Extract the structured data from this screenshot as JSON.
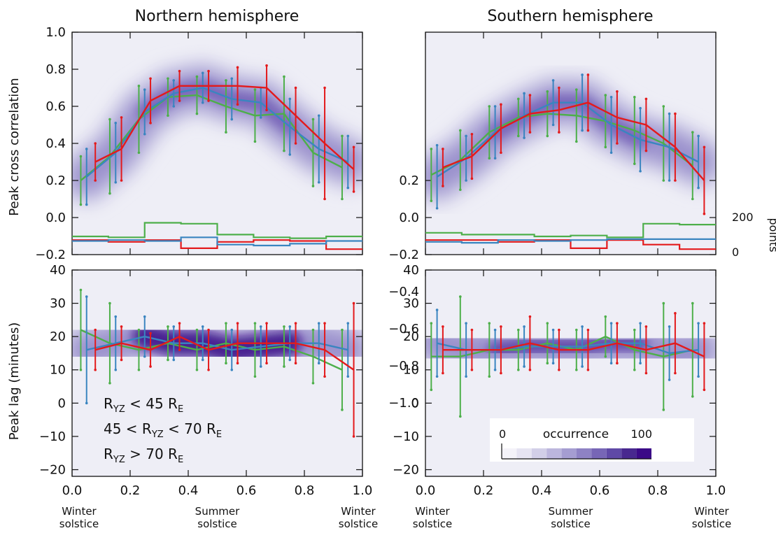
{
  "figure": {
    "panel_titles": [
      "Northern hemisphere",
      "Southern hemisphere"
    ],
    "ylabel_top": "Peak cross correlation",
    "ylabel_bottom": "Peak lag (minutes)",
    "right_axis_label": "points",
    "right_axis_ticks": [
      "200",
      "0"
    ],
    "season_labels": [
      {
        "x": 0.0,
        "line1": "Winter",
        "line2": "solstice"
      },
      {
        "x": 0.5,
        "line1": "Summer",
        "line2": "solstice"
      },
      {
        "x": 1.0,
        "line1": "Winter",
        "line2": "solstice"
      }
    ],
    "legend": [
      {
        "pre": "R",
        "sub": "YZ",
        "post": " < 45 R",
        "sub2": "E",
        "color": "#e31a1c",
        "lead": ""
      },
      {
        "pre": "R",
        "sub": "YZ",
        "post": " < 70 R",
        "sub2": "E",
        "color": "#3a85c0",
        "lead": "45 < "
      },
      {
        "pre": "R",
        "sub": "YZ",
        "post": " > 70 R",
        "sub2": "E",
        "color": "#4daf4a",
        "lead": ""
      }
    ],
    "colorbar": {
      "min_label": "0",
      "max_label": "100",
      "title": "occurrence"
    },
    "colors": {
      "red": "#e31a1c",
      "blue": "#3a85c0",
      "green": "#4daf4a",
      "contour_dark": "#3b0a87",
      "contour_light": "#eeeef6"
    }
  },
  "chart_data": [
    {
      "panel": "north-correlation",
      "type": "line",
      "title": "Northern hemisphere",
      "ylabel": "Peak cross correlation",
      "xlim": [
        0,
        1
      ],
      "ylim": [
        -0.2,
        1.0
      ],
      "xticks": [
        "0.0",
        "0.2",
        "0.4",
        "0.6",
        "0.8",
        "1.0"
      ],
      "yticks": [
        "1.0",
        "0.8",
        "0.6",
        "0.4",
        "0.2",
        "0.0",
        "-0.2"
      ],
      "series": [
        {
          "color": "red",
          "x": [
            0.08,
            0.17,
            0.27,
            0.37,
            0.47,
            0.57,
            0.67,
            0.77,
            0.87,
            0.97
          ],
          "y": [
            0.3,
            0.37,
            0.63,
            0.71,
            0.71,
            0.71,
            0.7,
            0.55,
            0.4,
            0.26
          ],
          "err": [
            0.1,
            0.17,
            0.12,
            0.08,
            0.08,
            0.1,
            0.12,
            0.15,
            0.3,
            0.12
          ]
        },
        {
          "color": "blue",
          "x": [
            0.05,
            0.15,
            0.25,
            0.35,
            0.45,
            0.55,
            0.65,
            0.75,
            0.85,
            0.95
          ],
          "y": [
            0.22,
            0.35,
            0.57,
            0.67,
            0.7,
            0.64,
            0.62,
            0.49,
            0.37,
            0.3
          ],
          "err": [
            0.15,
            0.16,
            0.12,
            0.07,
            0.08,
            0.11,
            0.08,
            0.15,
            0.18,
            0.14
          ]
        },
        {
          "color": "green",
          "x": [
            0.03,
            0.13,
            0.23,
            0.33,
            0.43,
            0.53,
            0.63,
            0.73,
            0.83,
            0.93
          ],
          "y": [
            0.2,
            0.33,
            0.53,
            0.65,
            0.66,
            0.6,
            0.55,
            0.56,
            0.35,
            0.27
          ],
          "err": [
            0.13,
            0.2,
            0.18,
            0.1,
            0.1,
            0.14,
            0.14,
            0.2,
            0.18,
            0.17
          ]
        }
      ],
      "histogram": {
        "bin_edges": [
          0.0,
          0.125,
          0.25,
          0.375,
          0.5,
          0.625,
          0.75,
          0.875,
          1.0
        ],
        "series": [
          {
            "color": "red",
            "counts": [
              80,
              70,
              80,
              35,
              70,
              80,
              75,
              30
            ]
          },
          {
            "color": "blue",
            "counts": [
              75,
              80,
              75,
              95,
              55,
              50,
              60,
              75
            ]
          },
          {
            "color": "green",
            "counts": [
              100,
              95,
              175,
              170,
              110,
              95,
              90,
              100
            ]
          }
        ]
      }
    },
    {
      "panel": "south-correlation",
      "type": "line",
      "title": "Southern hemisphere",
      "xlim": [
        0,
        1
      ],
      "ylim": [
        -1.0,
        0.2
      ],
      "xticks": [
        "0.0",
        "0.2",
        "0.4",
        "0.6",
        "0.8",
        "1.0"
      ],
      "yticks": [
        "-1.0",
        "-0.8",
        "-0.6",
        "-0.4",
        "-0.2",
        "0.0",
        "0.2"
      ],
      "series": [
        {
          "color": "red",
          "x": [
            0.06,
            0.16,
            0.26,
            0.36,
            0.46,
            0.56,
            0.66,
            0.76,
            0.86,
            0.96
          ],
          "y": [
            -0.27,
            -0.33,
            -0.48,
            -0.56,
            -0.58,
            -0.62,
            -0.54,
            -0.5,
            -0.38,
            -0.2
          ],
          "err": [
            0.1,
            0.12,
            0.13,
            0.1,
            0.12,
            0.15,
            0.14,
            0.14,
            0.18,
            0.18
          ]
        },
        {
          "color": "blue",
          "x": [
            0.04,
            0.14,
            0.24,
            0.34,
            0.44,
            0.54,
            0.64,
            0.74,
            0.84,
            0.94
          ],
          "y": [
            -0.22,
            -0.32,
            -0.46,
            -0.55,
            -0.62,
            -0.62,
            -0.5,
            -0.42,
            -0.38,
            -0.3
          ],
          "err": [
            0.17,
            0.12,
            0.14,
            0.12,
            0.12,
            0.15,
            0.15,
            0.17,
            0.18,
            0.14
          ]
        },
        {
          "color": "green",
          "x": [
            0.02,
            0.12,
            0.22,
            0.32,
            0.42,
            0.52,
            0.62,
            0.72,
            0.82,
            0.92
          ],
          "y": [
            -0.23,
            -0.31,
            -0.46,
            -0.54,
            -0.56,
            -0.55,
            -0.52,
            -0.47,
            -0.4,
            -0.28
          ],
          "err": [
            0.14,
            0.16,
            0.14,
            0.1,
            0.12,
            0.14,
            0.14,
            0.18,
            0.2,
            0.18
          ]
        }
      ],
      "histogram": {
        "bin_edges": [
          0.0,
          0.125,
          0.25,
          0.375,
          0.5,
          0.625,
          0.75,
          0.875,
          1.0
        ],
        "series": [
          {
            "color": "red",
            "counts": [
              80,
              80,
              70,
              80,
              35,
              80,
              55,
              30
            ]
          },
          {
            "color": "blue",
            "counts": [
              70,
              65,
              80,
              75,
              80,
              85,
              85,
              85
            ]
          },
          {
            "color": "green",
            "counts": [
              120,
              110,
              110,
              100,
              105,
              95,
              170,
              165
            ]
          }
        ]
      }
    },
    {
      "panel": "north-lag",
      "type": "line",
      "ylabel": "Peak lag (minutes)",
      "xlim": [
        0,
        1
      ],
      "ylim": [
        -22,
        40
      ],
      "xticks": [
        "0.0",
        "0.2",
        "0.4",
        "0.6",
        "0.8",
        "1.0"
      ],
      "yticks": [
        "40",
        "30",
        "20",
        "10",
        "0",
        "-10",
        "-20"
      ],
      "series": [
        {
          "color": "red",
          "x": [
            0.08,
            0.17,
            0.27,
            0.37,
            0.47,
            0.57,
            0.67,
            0.77,
            0.87,
            0.97
          ],
          "y": [
            16,
            18,
            16,
            20,
            16,
            18,
            18,
            18,
            16,
            10
          ],
          "err": [
            6,
            5,
            5,
            4,
            6,
            6,
            6,
            6,
            8,
            20
          ]
        },
        {
          "color": "blue",
          "x": [
            0.05,
            0.15,
            0.25,
            0.35,
            0.45,
            0.55,
            0.65,
            0.75,
            0.85,
            0.95
          ],
          "y": [
            16,
            18,
            20,
            18,
            18,
            16,
            17,
            18,
            18,
            16
          ],
          "err": [
            16,
            8,
            6,
            5,
            5,
            6,
            6,
            5,
            6,
            8
          ]
        },
        {
          "color": "green",
          "x": [
            0.03,
            0.13,
            0.23,
            0.33,
            0.43,
            0.53,
            0.63,
            0.73,
            0.83,
            0.93
          ],
          "y": [
            22,
            18,
            16,
            18,
            16,
            18,
            16,
            17,
            14,
            10
          ],
          "err": [
            12,
            12,
            6,
            5,
            6,
            6,
            8,
            6,
            8,
            12
          ]
        }
      ]
    },
    {
      "panel": "south-lag",
      "type": "line",
      "xlim": [
        0,
        1
      ],
      "ylim": [
        -22,
        40
      ],
      "xticks": [
        "0.0",
        "0.2",
        "0.4",
        "0.6",
        "0.8",
        "1.0"
      ],
      "yticks": [
        "40",
        "30",
        "20",
        "10",
        "0",
        "-10",
        "-20"
      ],
      "series": [
        {
          "color": "red",
          "x": [
            0.06,
            0.16,
            0.26,
            0.36,
            0.46,
            0.56,
            0.66,
            0.76,
            0.86,
            0.96
          ],
          "y": [
            16,
            16,
            16,
            18,
            16,
            16,
            18,
            16,
            18,
            14
          ],
          "err": [
            7,
            6,
            7,
            8,
            6,
            6,
            6,
            7,
            9,
            10
          ]
        },
        {
          "color": "blue",
          "x": [
            0.04,
            0.14,
            0.24,
            0.34,
            0.44,
            0.54,
            0.64,
            0.74,
            0.84,
            0.94
          ],
          "y": [
            18,
            16,
            16,
            17,
            17,
            17,
            18,
            18,
            15,
            16
          ],
          "err": [
            10,
            8,
            6,
            6,
            5,
            6,
            6,
            6,
            8,
            8
          ]
        },
        {
          "color": "green",
          "x": [
            0.02,
            0.12,
            0.22,
            0.32,
            0.42,
            0.52,
            0.62,
            0.72,
            0.82,
            0.92
          ],
          "y": [
            14,
            14,
            16,
            16,
            18,
            16,
            20,
            16,
            14,
            16
          ],
          "err": [
            10,
            18,
            8,
            6,
            6,
            6,
            6,
            6,
            16,
            14
          ]
        }
      ]
    }
  ]
}
